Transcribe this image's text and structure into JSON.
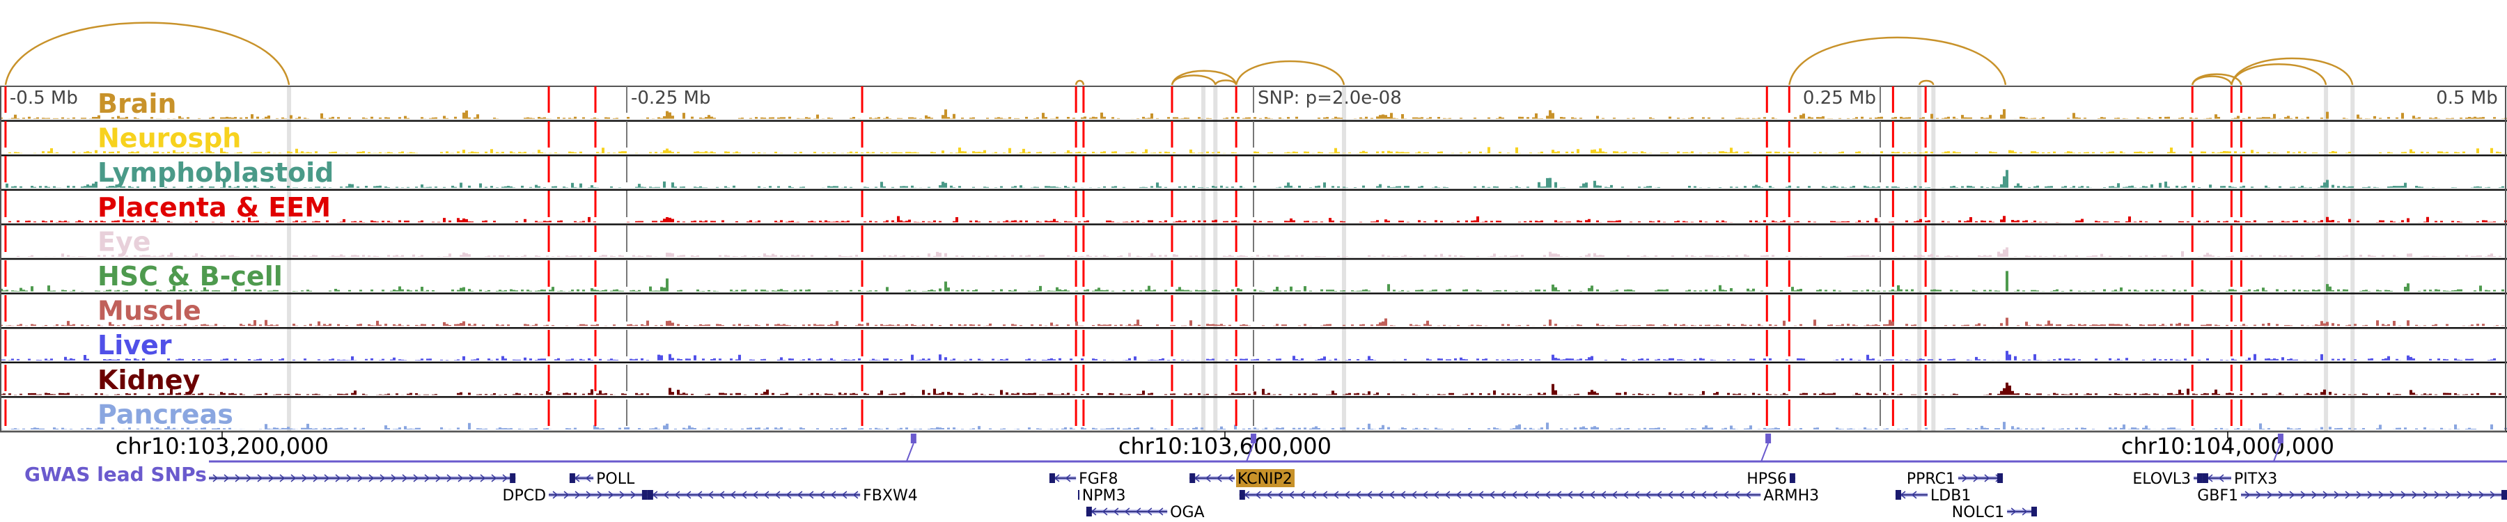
{
  "region": {
    "chrom": "chr10",
    "start": 103111400,
    "end": 104111400
  },
  "offset_labels": [
    {
      "text": "-0.5 Mb",
      "pos": 103113600,
      "anchor": "start"
    },
    {
      "text": "-0.25 Mb",
      "pos": 103361400,
      "anchor": "start"
    },
    {
      "text": "SNP: p=2.0e-08",
      "pos": 103611400,
      "anchor": "start"
    },
    {
      "text": "0.25 Mb",
      "pos": 103861400,
      "anchor": "end"
    },
    {
      "text": "0.5 Mb",
      "pos": 104109400,
      "anchor": "end"
    }
  ],
  "tracks": [
    {
      "label": "Brain",
      "color": "#c8922a",
      "scale": 0.6
    },
    {
      "label": "Neurosph",
      "color": "#f7d21e",
      "scale": 0.3
    },
    {
      "label": "Lymphoblastoid",
      "color": "#4a9a88",
      "scale": 1.0
    },
    {
      "label": "Placenta & EEM",
      "color": "#e00000",
      "scale": 0.4
    },
    {
      "label": "Eye",
      "color": "#e8d0da",
      "scale": 0.4
    },
    {
      "label": "HSC & B-cell",
      "color": "#4e9a4e",
      "scale": 0.8
    },
    {
      "label": "Muscle",
      "color": "#c0605a",
      "scale": 0.45
    },
    {
      "label": "Liver",
      "color": "#5050e8",
      "scale": 0.45
    },
    {
      "label": "Kidney",
      "color": "#6b0000",
      "scale": 0.55
    },
    {
      "label": "Pancreas",
      "color": "#8aa6e0",
      "scale": 0.4
    }
  ],
  "signal_peaks": [
    {
      "pos": 103296100,
      "height": 0.3
    },
    {
      "pos": 103377500,
      "height": 0.5
    },
    {
      "pos": 103487800,
      "height": 0.25
    },
    {
      "pos": 103662800,
      "height": 0.3
    },
    {
      "pos": 103729500,
      "height": 0.55
    },
    {
      "pos": 103746100,
      "height": 0.35
    },
    {
      "pos": 103911400,
      "height": 0.95
    },
    {
      "pos": 104039200,
      "height": 0.3
    },
    {
      "pos": 104071700,
      "height": 0.4
    }
  ],
  "red_lines": [
    103113600,
    103330300,
    103348900,
    103455300,
    103540600,
    103543600,
    103578900,
    103604500,
    103816200,
    103825100,
    103866500,
    103879500,
    103985900,
    104001500,
    104005400
  ],
  "gray_lines": [
    103226700,
    103591400,
    103596200,
    103647500,
    103877000,
    103882600,
    104039200,
    104049800
  ],
  "dark_ticks": [
    103361400,
    103611400,
    103861400
  ],
  "arcs": [
    [
      103113600,
      103226700
    ],
    [
      103540600,
      103543600
    ],
    [
      103578900,
      103596200
    ],
    [
      103578900,
      103604500
    ],
    [
      103596200,
      103604500
    ],
    [
      103604500,
      103647500
    ],
    [
      103825100,
      103911400
    ],
    [
      103877000,
      103882600
    ],
    [
      103985900,
      104001500
    ],
    [
      103985900,
      104005400
    ],
    [
      104001500,
      104039200
    ],
    [
      104001500,
      104049800
    ]
  ],
  "arc_color": "#c8922a",
  "coord_ticks": [
    {
      "pos": 103200000,
      "label": "chr10:103,200,000"
    },
    {
      "pos": 103600000,
      "label": "chr10:103,600,000"
    },
    {
      "pos": 104000000,
      "label": "chr10:104,000,000"
    }
  ],
  "gwas": {
    "label": "GWAS lead SNPs",
    "color": "#6a5acd",
    "snps": [
      103475800,
      103611400,
      103816700,
      104021100
    ]
  },
  "genes": [
    {
      "name": "",
      "start": 103111400,
      "end": 103317000,
      "strand": "+",
      "row": 0,
      "label_side": "left"
    },
    {
      "name": "POLL",
      "start": 103338600,
      "end": 103348100,
      "strand": "-",
      "row": 0,
      "label_side": "right"
    },
    {
      "name": "DPCD",
      "start": 103330300,
      "end": 103369700,
      "strand": "+",
      "row": 1,
      "label_side": "left"
    },
    {
      "name": "FBXW4",
      "start": 103369700,
      "end": 103454500,
      "strand": "-",
      "row": 1,
      "label_side": "right"
    },
    {
      "name": "FGF8",
      "start": 103530000,
      "end": 103540600,
      "strand": "-",
      "row": 0,
      "label_side": "right"
    },
    {
      "name": "NPM3",
      "start": 103541400,
      "end": 103541900,
      "strand": "-",
      "row": 1,
      "label_side": "right"
    },
    {
      "name": "OGA",
      "start": 103544700,
      "end": 103577000,
      "strand": "-",
      "row": 2,
      "label_side": "right"
    },
    {
      "name": "KCNIP2",
      "start": 103585900,
      "end": 103603900,
      "strand": "-",
      "row": 0,
      "label_side": "right",
      "highlight": "#c8922a"
    },
    {
      "name": "ARMH3",
      "start": 103605800,
      "end": 103813700,
      "strand": "-",
      "row": 1,
      "label_side": "right"
    },
    {
      "name": "HPS6",
      "start": 103825300,
      "end": 103827500,
      "strand": "+",
      "row": 0,
      "label_side": "left"
    },
    {
      "name": "PPRC1",
      "start": 103892500,
      "end": 103910300,
      "strand": "+",
      "row": 0,
      "label_side": "left"
    },
    {
      "name": "LDB1",
      "start": 103867500,
      "end": 103880300,
      "strand": "-",
      "row": 1,
      "label_side": "right"
    },
    {
      "name": "NOLC1",
      "start": 103912000,
      "end": 103923900,
      "strand": "+",
      "row": 2,
      "label_side": "left"
    },
    {
      "name": "ELOVL3",
      "start": 103986400,
      "end": 103990000,
      "strand": "+",
      "row": 0,
      "label_side": "left"
    },
    {
      "name": "PITX3",
      "start": 103990000,
      "end": 104001400,
      "strand": "-",
      "row": 0,
      "label_side": "right"
    },
    {
      "name": "GBF1",
      "start": 104005300,
      "end": 104111400,
      "strand": "+",
      "row": 1,
      "label_side": "left"
    }
  ]
}
